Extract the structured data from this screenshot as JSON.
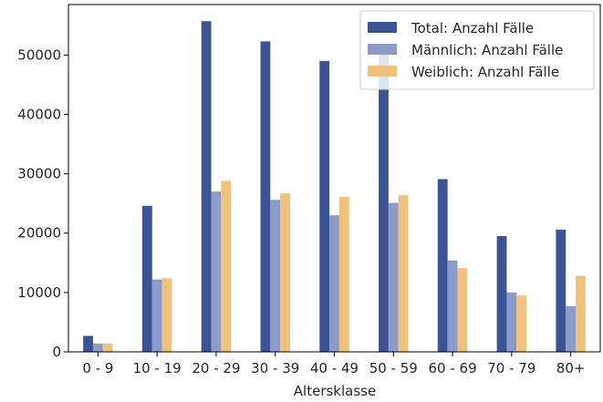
{
  "chart_data": {
    "type": "bar",
    "categories": [
      "0 - 9",
      "10 - 19",
      "20 - 29",
      "30 - 39",
      "40 - 49",
      "50 - 59",
      "60 - 69",
      "70 - 79",
      "80+"
    ],
    "series": [
      {
        "name": "Total: Anzahl Fälle",
        "color": "#3a5496",
        "values": [
          2700,
          24600,
          55700,
          52300,
          49000,
          51500,
          29100,
          19500,
          20600
        ]
      },
      {
        "name": "Männlich: Anzahl Fälle",
        "color": "#8b9cc8",
        "values": [
          1400,
          12200,
          27000,
          25600,
          23000,
          25100,
          15400,
          10000,
          7700
        ]
      },
      {
        "name": "Weiblich: Anzahl Fälle",
        "color": "#f0c27a",
        "values": [
          1400,
          12400,
          28800,
          26700,
          26100,
          26400,
          14100,
          9500,
          12800
        ]
      }
    ],
    "xlabel": "Altersklasse",
    "ylabel": "",
    "ylim": [
      0,
      58500
    ],
    "yticks": [
      0,
      10000,
      20000,
      30000,
      40000,
      50000
    ],
    "ytick_labels": [
      "0",
      "10000",
      "20000",
      "30000",
      "40000",
      "50000"
    ],
    "legend_position": "top-right",
    "grid": false
  }
}
